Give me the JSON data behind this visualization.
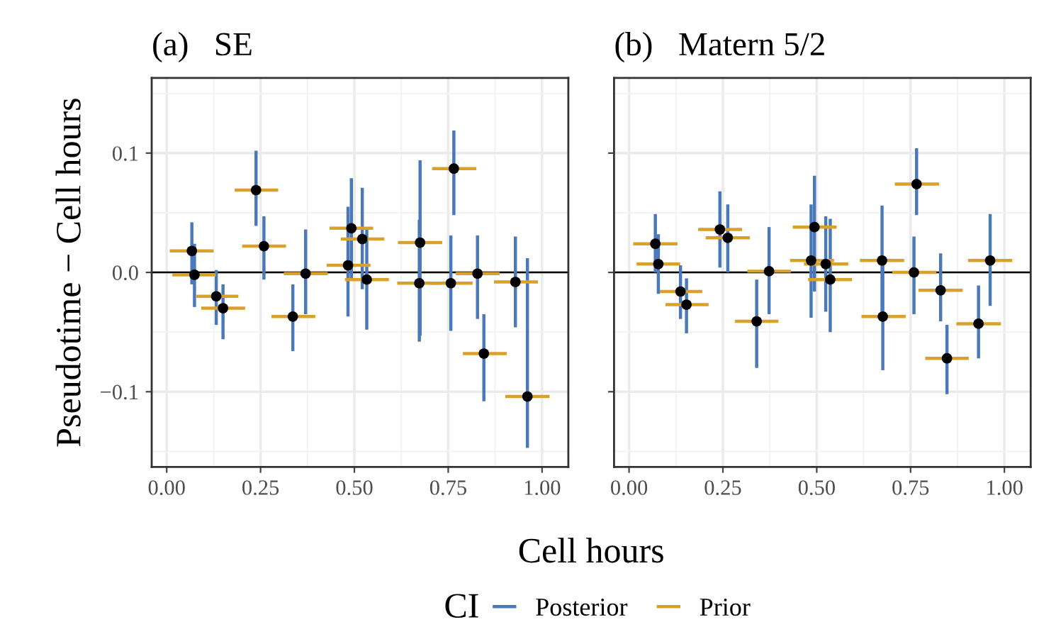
{
  "chart_data": [
    {
      "type": "scatter",
      "title": "(a)   SE",
      "xlabel": "Cell hours",
      "ylabel": "Pseudotime − Cell hours",
      "legend_title": "CI",
      "grid": true,
      "annotations": [
        "Posterior",
        "Prior"
      ],
      "xlim": [
        -0.04,
        1.07
      ],
      "ylim": [
        -0.163,
        0.163
      ],
      "xticks": [
        {
          "value": 0,
          "label": "0.00"
        },
        {
          "value": 0.25,
          "label": "0.25"
        },
        {
          "value": 0.5,
          "label": "0.50"
        },
        {
          "value": 0.75,
          "label": "0.75"
        },
        {
          "value": 1,
          "label": "1.00"
        }
      ],
      "yticks": [
        {
          "value": -0.1,
          "label": "−0.1"
        },
        {
          "value": 0,
          "label": "0.0"
        },
        {
          "value": 0.1,
          "label": "0.1"
        }
      ],
      "ref_lines": [
        {
          "axis": "y",
          "value": 0,
          "color": "#000000"
        }
      ],
      "series": [
        {
          "color": "#000000",
          "marker": "circle",
          "x": [
            0.067,
            0.074,
            0.132,
            0.15,
            0.238,
            0.259,
            0.336,
            0.37,
            0.483,
            0.492,
            0.521,
            0.533,
            0.673,
            0.675,
            0.757,
            0.765,
            0.828,
            0.845,
            0.929,
            0.961
          ],
          "values": [
            0.018,
            -0.002,
            -0.02,
            -0.03,
            0.069,
            0.022,
            -0.037,
            -0.001,
            0.006,
            0.037,
            0.028,
            -0.006,
            -0.009,
            0.025,
            -0.009,
            0.087,
            -0.001,
            -0.068,
            -0.008,
            -0.104
          ],
          "errors": [
            [
              -0.01,
              0.042
            ],
            [
              -0.029,
              0.024
            ],
            [
              -0.044,
              0.002
            ],
            [
              -0.056,
              -0.01
            ],
            [
              0.039,
              0.102
            ],
            [
              -0.006,
              0.047
            ],
            [
              -0.066,
              -0.01
            ],
            [
              -0.035,
              0.036
            ],
            [
              -0.037,
              0.055
            ],
            [
              -0.007,
              0.079
            ],
            [
              -0.014,
              0.071
            ],
            [
              -0.048,
              0.036
            ],
            [
              -0.058,
              0.044
            ],
            [
              -0.053,
              0.094
            ],
            [
              -0.049,
              0.031
            ],
            [
              0.048,
              0.119
            ],
            [
              -0.039,
              0.031
            ],
            [
              -0.108,
              -0.035
            ],
            [
              -0.046,
              0.03
            ],
            [
              -0.147,
              0.012
            ]
          ],
          "xerrors": [
            [
              0.008,
              0.125
            ],
            [
              0.015,
              0.131
            ],
            [
              0.079,
              0.191
            ],
            [
              0.092,
              0.209
            ],
            [
              0.181,
              0.297
            ],
            [
              0.201,
              0.318
            ],
            [
              0.279,
              0.396
            ],
            [
              0.312,
              0.429
            ],
            [
              0.426,
              0.543
            ],
            [
              0.434,
              0.55
            ],
            [
              0.464,
              0.58
            ],
            [
              0.475,
              0.592
            ],
            [
              0.614,
              0.731
            ],
            [
              0.616,
              0.734
            ],
            [
              0.7,
              0.815
            ],
            [
              0.707,
              0.825
            ],
            [
              0.77,
              0.887
            ],
            [
              0.789,
              0.906
            ],
            [
              0.872,
              0.989
            ],
            [
              0.902,
              1.02
            ]
          ]
        }
      ]
    },
    {
      "type": "scatter",
      "title": "(b)   Matern 5/2",
      "grid": true,
      "tick_labels": "x",
      "xlim": [
        -0.04,
        1.07
      ],
      "ylim": [
        -0.163,
        0.163
      ],
      "xticks": [
        {
          "value": 0,
          "label": "0.00"
        },
        {
          "value": 0.25,
          "label": "0.25"
        },
        {
          "value": 0.5,
          "label": "0.50"
        },
        {
          "value": 0.75,
          "label": "0.75"
        },
        {
          "value": 1,
          "label": "1.00"
        }
      ],
      "yticks": [
        {
          "value": -0.1,
          "label": null
        },
        {
          "value": 0,
          "label": null
        },
        {
          "value": 0.1,
          "label": null
        }
      ],
      "ref_lines": [
        {
          "axis": "y",
          "value": 0,
          "color": "#000000"
        }
      ],
      "series": [
        {
          "color": "#000000",
          "marker": "circle",
          "x": [
            0.07,
            0.078,
            0.137,
            0.153,
            0.242,
            0.263,
            0.34,
            0.373,
            0.485,
            0.494,
            0.524,
            0.536,
            0.674,
            0.676,
            0.759,
            0.766,
            0.83,
            0.847,
            0.931,
            0.962
          ],
          "values": [
            0.024,
            0.007,
            -0.016,
            -0.027,
            0.036,
            0.029,
            -0.041,
            0.001,
            0.01,
            0.038,
            0.007,
            -0.006,
            0.01,
            -0.037,
            0.0,
            0.074,
            -0.015,
            -0.072,
            -0.043,
            0.01
          ],
          "errors": [
            [
              0.0,
              0.049
            ],
            [
              -0.018,
              0.032
            ],
            [
              -0.039,
              0.006
            ],
            [
              -0.051,
              -0.005
            ],
            [
              0.004,
              0.068
            ],
            [
              0.0,
              0.057
            ],
            [
              -0.08,
              -0.006
            ],
            [
              -0.035,
              0.038
            ],
            [
              -0.038,
              0.057
            ],
            [
              -0.016,
              0.081
            ],
            [
              -0.033,
              0.047
            ],
            [
              -0.05,
              0.045
            ],
            [
              -0.033,
              0.056
            ],
            [
              -0.082,
              0.01
            ],
            [
              -0.035,
              0.03
            ],
            [
              0.048,
              0.104
            ],
            [
              -0.041,
              0.016
            ],
            [
              -0.102,
              -0.044
            ],
            [
              -0.072,
              -0.011
            ],
            [
              -0.028,
              0.049
            ]
          ],
          "xerrors": [
            [
              0.011,
              0.129
            ],
            [
              0.02,
              0.136
            ],
            [
              0.082,
              0.195
            ],
            [
              0.097,
              0.212
            ],
            [
              0.184,
              0.301
            ],
            [
              0.204,
              0.322
            ],
            [
              0.282,
              0.398
            ],
            [
              0.315,
              0.431
            ],
            [
              0.429,
              0.546
            ],
            [
              0.436,
              0.553
            ],
            [
              0.466,
              0.584
            ],
            [
              0.477,
              0.594
            ],
            [
              0.615,
              0.733
            ],
            [
              0.619,
              0.737
            ],
            [
              0.701,
              0.819
            ],
            [
              0.708,
              0.826
            ],
            [
              0.771,
              0.889
            ],
            [
              0.789,
              0.905
            ],
            [
              0.872,
              0.991
            ],
            [
              0.903,
              1.021
            ]
          ]
        }
      ]
    }
  ]
}
